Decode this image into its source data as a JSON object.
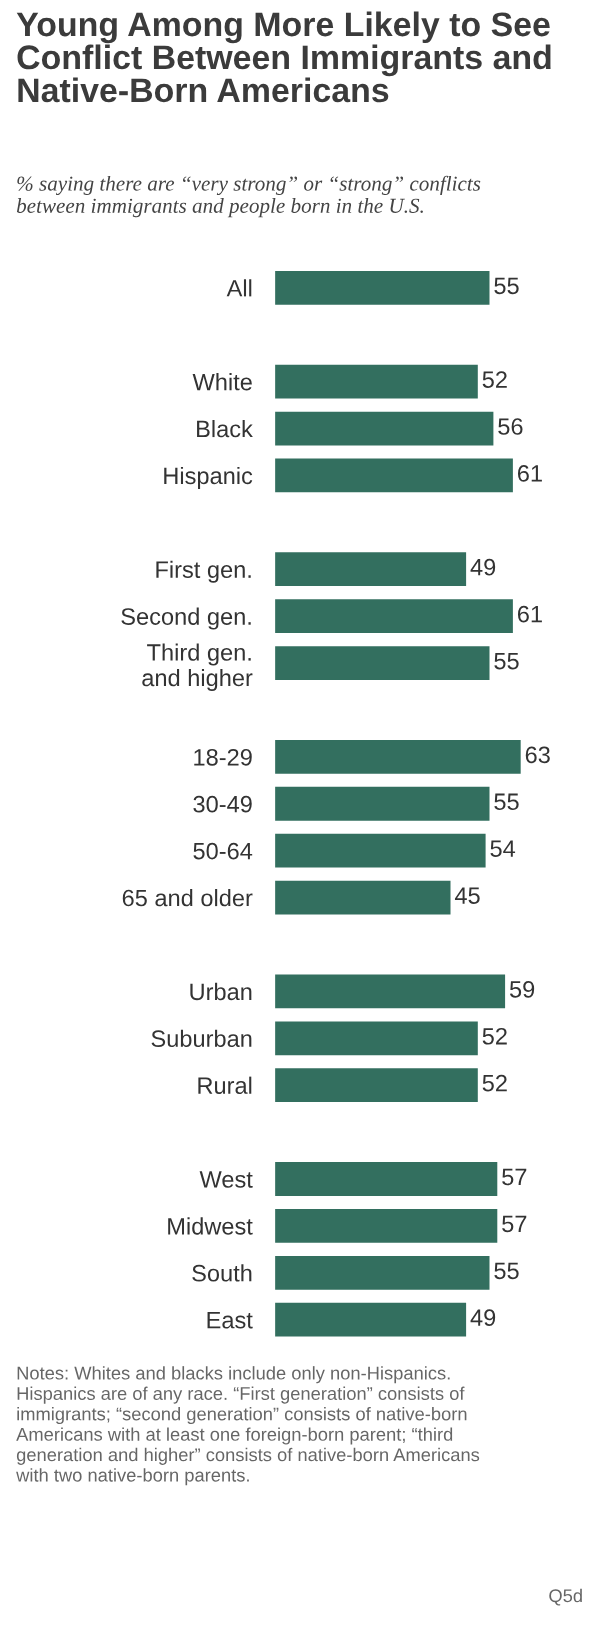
{
  "chart_data": {
    "type": "bar",
    "orientation": "horizontal",
    "title": "Young Among More Likely to See\nConflict Between Immigrants and\nNative-Born Americans",
    "subtitle": "% saying there are “very strong” or “strong” conflicts\nbetween immigrants and people born in the U.S.",
    "categories": [
      "All",
      null,
      "White",
      "Black",
      "Hispanic",
      null,
      "First gen.",
      "Second gen.",
      "Third gen.\nand higher",
      null,
      "18-29",
      "30-49",
      "50-64",
      "65 and older",
      null,
      "Urban",
      "Suburban",
      "Rural",
      null,
      "West",
      "Midwest",
      "South",
      "East"
    ],
    "values": [
      55,
      null,
      52,
      56,
      61,
      null,
      49,
      61,
      55,
      null,
      63,
      55,
      54,
      45,
      null,
      59,
      52,
      52,
      null,
      57,
      57,
      55,
      49
    ],
    "color": "#336f5f",
    "data_labels": true,
    "grid": false,
    "legend": false,
    "tick_labels": "y",
    "annotations": [
      "Notes: Whites and blacks include only non-Hispanics.\nHispanics are of any race. “First generation” consists of\nimmigrants; “second generation” consists of native-born\nAmericans with at least one foreign-born parent; “third\ngeneration and higher” consists of native-born Americans\nwith two native-born parents.",
      "Q5d"
    ]
  }
}
